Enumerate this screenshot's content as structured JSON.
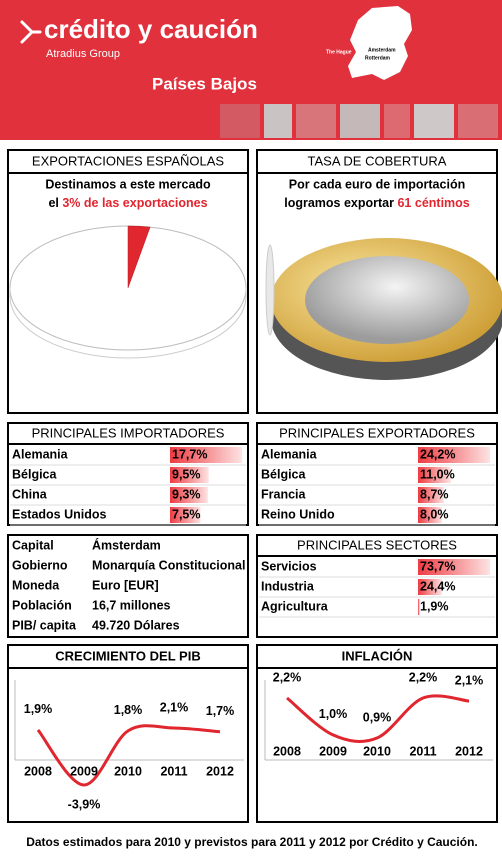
{
  "header": {
    "brand": "crédito y caución",
    "group": "Atradius Group",
    "country": "Países Bajos",
    "map_labels": [
      "The Hague",
      "Amsterdam",
      "Rotterdam"
    ]
  },
  "exports": {
    "title": "EXPORTACIONES ESPAÑOLAS",
    "line1": "Destinamos a este mercado",
    "line2_prefix": "el",
    "highlight": "3% de las exportaciones",
    "share": 3
  },
  "coverage": {
    "title": "TASA DE COBERTURA",
    "line1": "Por cada euro de importación",
    "line2_prefix": "logramos exportar",
    "highlight": "61 céntimos"
  },
  "importers": {
    "title": "PRINCIPALES IMPORTADORES",
    "rows": [
      {
        "name": "Alemania",
        "value": 17.7,
        "label": "17,7%"
      },
      {
        "name": "Bélgica",
        "value": 9.5,
        "label": "9,5%"
      },
      {
        "name": "China",
        "value": 9.3,
        "label": "9,3%"
      },
      {
        "name": "Estados Unidos",
        "value": 7.5,
        "label": "7,5%"
      }
    ]
  },
  "exporters": {
    "title": "PRINCIPALES EXPORTADORES",
    "rows": [
      {
        "name": "Alemania",
        "value": 24.2,
        "label": "24,2%"
      },
      {
        "name": "Bélgica",
        "value": 11.0,
        "label": "11,0%"
      },
      {
        "name": "Francia",
        "value": 8.7,
        "label": "8,7%"
      },
      {
        "name": "Reino Unido",
        "value": 8.0,
        "label": "8,0%"
      }
    ]
  },
  "facts": {
    "rows": [
      [
        "Capital",
        "Ámsterdam"
      ],
      [
        "Gobierno",
        "Monarquía Constitucional"
      ],
      [
        "Moneda",
        "Euro [EUR]"
      ],
      [
        "Población",
        "16,7 millones"
      ],
      [
        "PIB/ capita",
        "49.720 Dólares"
      ]
    ]
  },
  "sectors": {
    "title": "PRINCIPALES SECTORES",
    "rows": [
      {
        "name": "Servicios",
        "value": 73.7,
        "label": "73,7%"
      },
      {
        "name": "Industria",
        "value": 24.4,
        "label": "24,4%"
      },
      {
        "name": "Agricultura",
        "value": 1.9,
        "label": "1,9%"
      }
    ]
  },
  "gdp": {
    "type": "line",
    "title": "CRECIMIENTO DEL PIB",
    "x": [
      "2008",
      "2009",
      "2010",
      "2011",
      "2012"
    ],
    "values": [
      1.9,
      -3.9,
      1.8,
      2.1,
      1.7
    ],
    "value_labels": [
      "1,9%",
      "-3,9%",
      "1,8%",
      "2,1%",
      "1,7%"
    ],
    "color": "#e0262e"
  },
  "inflation": {
    "type": "line",
    "title": "INFLACIÓN",
    "x": [
      "2008",
      "2009",
      "2010",
      "2011",
      "2012"
    ],
    "values": [
      2.2,
      1.0,
      0.9,
      2.2,
      2.1
    ],
    "value_labels": [
      "2,2%",
      "1,0%",
      "0,9%",
      "2,2%",
      "2,1%"
    ],
    "color": "#e0262e"
  },
  "footer": "Datos estimados para 2010 y previstos para 2011  y 2012 por Crédito y Caución."
}
